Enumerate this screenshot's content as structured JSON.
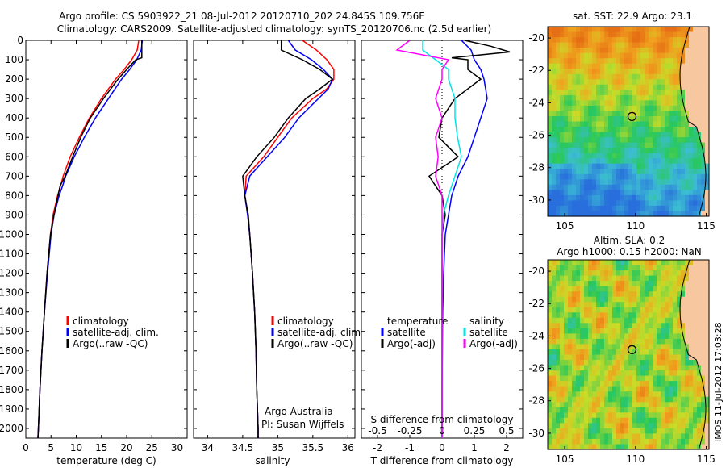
{
  "header": {
    "line1": "Argo profile: CS 5903922_21 08-Jul-2012 20120710_202 24.845S 109.756E",
    "line2": "Climatology: CARS2009. Satellite-adjusted climatology: synTS_20120706.nc (2.5d earlier)"
  },
  "colors": {
    "climatology": "#ff0000",
    "satellite": "#0000ff",
    "argo": "#000000",
    "salinity": "#00e5e5",
    "argo_adj": "#ff00ff",
    "land": "#f7c7a0"
  },
  "chart_data": [
    {
      "type": "line",
      "xlabel": "temperature (deg C)",
      "xlim": [
        0,
        32
      ],
      "xticks": [
        "0",
        "5",
        "10",
        "15",
        "20",
        "25",
        "30"
      ],
      "ylim": [
        0,
        2050
      ],
      "yticks": [
        "0",
        "100",
        "200",
        "300",
        "400",
        "500",
        "600",
        "700",
        "800",
        "900",
        "1000",
        "1100",
        "1200",
        "1300",
        "1400",
        "1500",
        "1600",
        "1700",
        "1800",
        "1900",
        "2000"
      ],
      "legend": [
        "climatology",
        "satellite-adj. clim.",
        "Argo(..raw -QC)"
      ],
      "series": [
        {
          "name": "climatology",
          "depth": [
            0,
            50,
            100,
            150,
            200,
            300,
            400,
            500,
            600,
            700,
            750,
            800,
            900,
            1000,
            1200,
            1400,
            1600,
            1800,
            2000,
            2050
          ],
          "values": [
            22.4,
            22.1,
            21.0,
            19.5,
            17.8,
            15.0,
            12.6,
            10.6,
            8.8,
            7.4,
            6.9,
            6.3,
            5.4,
            4.9,
            4.2,
            3.7,
            3.2,
            2.8,
            2.5,
            2.4
          ]
        },
        {
          "name": "satellite-adj. clim.",
          "depth": [
            0,
            50,
            100,
            150,
            200,
            300,
            400,
            500,
            600,
            700,
            750,
            800,
            900,
            1000,
            1200,
            1400,
            1600,
            1800,
            2000,
            2050
          ],
          "values": [
            23.1,
            22.9,
            22.0,
            20.6,
            19.0,
            16.4,
            13.8,
            11.6,
            9.6,
            7.9,
            7.3,
            6.6,
            5.6,
            5.0,
            4.3,
            3.7,
            3.2,
            2.8,
            2.5,
            2.4
          ]
        },
        {
          "name": "Argo(..raw -QC)",
          "depth": [
            0,
            50,
            90,
            100,
            150,
            200,
            300,
            400,
            500,
            600,
            700,
            750,
            800,
            900,
            1000,
            1200,
            1400,
            1600,
            1800,
            2000,
            2050
          ],
          "values": [
            23.0,
            23.0,
            23.0,
            21.8,
            20.0,
            18.3,
            15.4,
            12.8,
            10.9,
            9.3,
            7.8,
            6.8,
            6.4,
            5.6,
            4.9,
            4.2,
            3.7,
            3.2,
            2.8,
            2.5,
            2.4
          ]
        }
      ]
    },
    {
      "type": "line",
      "xlabel": "salinity",
      "xlim": [
        33.8,
        36.1
      ],
      "xticks": [
        "34",
        "34.5",
        "35",
        "35.5",
        "36"
      ],
      "ylim": [
        0,
        2050
      ],
      "legend": [
        "climatology",
        "satellite-adj. clim.",
        "Argo(..raw -QC)"
      ],
      "annotations": [
        "Argo Australia",
        "PI: Susan Wijffels"
      ],
      "series": [
        {
          "name": "climatology",
          "depth": [
            0,
            50,
            100,
            150,
            200,
            250,
            300,
            400,
            500,
            600,
            700,
            800,
            900,
            1000,
            1200,
            1400,
            1600,
            1800,
            2000,
            2050
          ],
          "values": [
            35.35,
            35.55,
            35.7,
            35.8,
            35.8,
            35.7,
            35.5,
            35.2,
            35.0,
            34.8,
            34.55,
            34.53,
            34.57,
            34.6,
            34.64,
            34.67,
            34.69,
            34.7,
            34.72,
            34.72
          ]
        },
        {
          "name": "satellite-adj. clim.",
          "depth": [
            0,
            50,
            100,
            150,
            200,
            250,
            300,
            400,
            500,
            600,
            700,
            800,
            900,
            1000,
            1200,
            1400,
            1600,
            1800,
            2000,
            2050
          ],
          "values": [
            35.15,
            35.25,
            35.48,
            35.65,
            35.78,
            35.72,
            35.58,
            35.3,
            35.1,
            34.85,
            34.6,
            34.53,
            34.57,
            34.6,
            34.64,
            34.67,
            34.69,
            34.7,
            34.72,
            34.72
          ]
        },
        {
          "name": "Argo(..raw -QC)",
          "depth": [
            0,
            50,
            100,
            150,
            200,
            250,
            300,
            400,
            500,
            600,
            700,
            800,
            900,
            1000,
            1200,
            1400,
            1600,
            1800,
            2000,
            2050
          ],
          "values": [
            35.05,
            35.05,
            35.35,
            35.6,
            35.78,
            35.6,
            35.4,
            35.15,
            34.95,
            34.7,
            34.5,
            34.53,
            34.58,
            34.6,
            34.64,
            34.67,
            34.69,
            34.7,
            34.72,
            34.72
          ]
        }
      ]
    },
    {
      "type": "line",
      "xlabel": "T difference from climatology",
      "xlabel_top": "S difference from climatology",
      "xlim": [
        -2.5,
        2.5
      ],
      "xticks": [
        "-2",
        "-1",
        "0",
        "1",
        "2"
      ],
      "xticks_top": [
        "-0.5",
        "-0.25",
        "0",
        "0.25",
        "0.5"
      ],
      "ylim": [
        0,
        2050
      ],
      "legend": {
        "temperature": [
          "satellite",
          "Argo(-adj)"
        ],
        "salinity": [
          "satellite",
          "Argo(-adj)"
        ]
      },
      "legend_titles": [
        "temperature",
        "salinity"
      ],
      "series": [
        {
          "name": "temperature satellite",
          "depth": [
            0,
            50,
            100,
            150,
            200,
            300,
            400,
            500,
            600,
            700,
            800,
            900,
            1000,
            1200,
            1400,
            1600,
            1800,
            2000,
            2050
          ],
          "values": [
            0.6,
            0.9,
            1.0,
            1.2,
            1.3,
            1.4,
            1.2,
            1.0,
            0.8,
            0.5,
            0.3,
            0.2,
            0.1,
            0.05,
            0.02,
            0.01,
            0.0,
            0.0,
            0.0
          ]
        },
        {
          "name": "temperature Argo(-adj)",
          "depth": [
            0,
            30,
            60,
            90,
            100,
            150,
            200,
            300,
            400,
            500,
            600,
            700,
            800,
            900,
            1000,
            1200,
            1400,
            1600,
            1800,
            2000,
            2050
          ],
          "values": [
            0.7,
            1.5,
            2.1,
            0.3,
            0.8,
            0.8,
            1.2,
            0.4,
            0.0,
            -0.1,
            0.5,
            -0.4,
            0.0,
            0.1,
            0.0,
            0.0,
            0.0,
            0.0,
            0.0,
            0.0,
            0.0
          ]
        },
        {
          "name": "salinity satellite",
          "depth": [
            0,
            50,
            100,
            150,
            200,
            300,
            400,
            500,
            600,
            700,
            800,
            900,
            1000,
            1200,
            1400,
            1600,
            1800,
            2000,
            2050
          ],
          "values": [
            -0.15,
            -0.15,
            -0.05,
            0.05,
            0.05,
            0.1,
            0.1,
            0.12,
            0.15,
            0.1,
            0.05,
            0.01,
            0.0,
            0.0,
            0.0,
            0.0,
            0.0,
            0.0,
            0.0
          ]
        },
        {
          "name": "salinity Argo(-adj)",
          "depth": [
            0,
            50,
            100,
            150,
            200,
            300,
            400,
            500,
            600,
            700,
            800,
            900,
            1000,
            1200,
            1400,
            1600,
            1800,
            2000,
            2050
          ],
          "values": [
            -0.25,
            -0.35,
            0.05,
            0.0,
            0.0,
            -0.05,
            0.0,
            -0.05,
            -0.03,
            -0.05,
            0.0,
            0.0,
            0.0,
            0.0,
            0.0,
            0.0,
            0.0,
            0.0,
            0.0
          ]
        }
      ]
    }
  ],
  "maps": [
    {
      "title": "sat. SST: 22.9 Argo: 23.1",
      "xticks": [
        "105",
        "110",
        "115"
      ],
      "yticks": [
        "-20",
        "-22",
        "-24",
        "-26",
        "-28",
        "-30"
      ],
      "xlim": [
        103.8,
        115.2
      ],
      "ylim": [
        -31,
        -19.3
      ],
      "marker": {
        "lon": 109.756,
        "lat": -24.845
      }
    },
    {
      "title": "Altim. SLA: 0.2",
      "subtitle": "Argo h1000: 0.15 h2000: NaN",
      "xticks": [
        "105",
        "110",
        "115"
      ],
      "yticks": [
        "-20",
        "-22",
        "-24",
        "-26",
        "-28",
        "-30"
      ],
      "xlim": [
        103.8,
        115.2
      ],
      "ylim": [
        -31,
        -19.3
      ],
      "marker": {
        "lon": 109.756,
        "lat": -24.845
      }
    }
  ],
  "side_label": "IMOS 11-Jul-2012 17:03:28"
}
